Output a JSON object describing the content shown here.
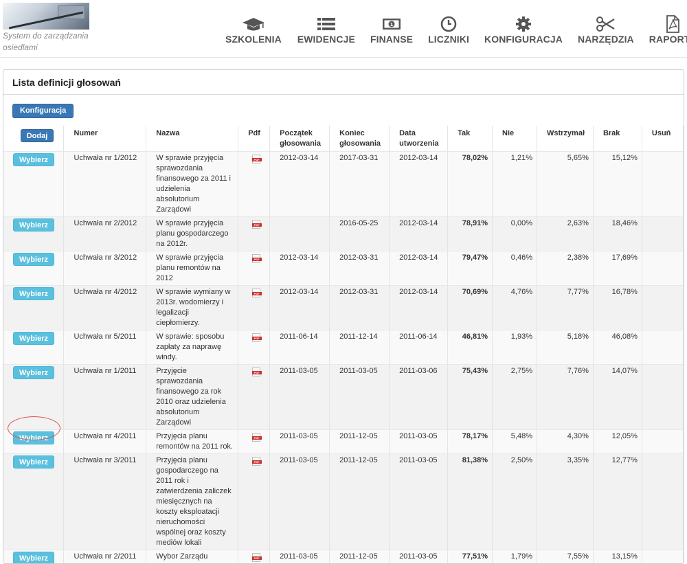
{
  "logo": {
    "tagline": "System do zarządzania osiedlami"
  },
  "nav": [
    {
      "label": "SZKOLENIA",
      "icon": "graduation-cap-icon"
    },
    {
      "label": "EWIDENCJE",
      "icon": "list-icon"
    },
    {
      "label": "FINANSE",
      "icon": "money-bill-icon"
    },
    {
      "label": "LICZNIKI",
      "icon": "clock-icon"
    },
    {
      "label": "KONFIGURACJA",
      "icon": "gear-icon"
    },
    {
      "label": "NARZĘDZIA",
      "icon": "scissors-icon"
    },
    {
      "label": "RAPORTY",
      "icon": "pdf-document-icon"
    }
  ],
  "panel": {
    "title": "Lista definicji głosowań",
    "config_button": "Konfiguracja"
  },
  "table": {
    "add_button": "Dodaj",
    "select_button": "Wybierz",
    "headers": {
      "numer": "Numer",
      "nazwa": "Nazwa",
      "pdf": "Pdf",
      "start": "Początek głosowania",
      "end": "Koniec głosowania",
      "created": "Data utworzenia",
      "tak": "Tak",
      "nie": "Nie",
      "wstrzymal": "Wstrzymał",
      "brak": "Brak",
      "usun": "Usuń"
    },
    "rows": [
      {
        "numer": "Uchwała nr 1/2012",
        "nazwa": "W sprawie przyjęcia sprawozdania finansowego za 2011 i udzielenia absolutorium Zarządowi",
        "start": "2012-03-14",
        "end": "2017-03-31",
        "created": "2012-03-14",
        "tak": "78,02%",
        "nie": "1,21%",
        "wstrzymal": "5,65%",
        "brak": "15,12%"
      },
      {
        "numer": "Uchwała nr 2/2012",
        "nazwa": "W sprawie przyjęcia planu gospodarczego na 2012r.",
        "start": "",
        "end": "2016-05-25",
        "created": "2012-03-14",
        "tak": "78,91%",
        "nie": "0,00%",
        "wstrzymal": "2,63%",
        "brak": "18,46%"
      },
      {
        "numer": "Uchwała nr 3/2012",
        "nazwa": "W sprawie przyjęcia planu remontów na 2012",
        "start": "2012-03-14",
        "end": "2012-03-31",
        "created": "2012-03-14",
        "tak": "79,47%",
        "nie": "0,46%",
        "wstrzymal": "2,38%",
        "brak": "17,69%"
      },
      {
        "numer": "Uchwała nr 4/2012",
        "nazwa": "W sprawie wymiany w 2013r. wodomierzy i legalizacji ciepłomierzy.",
        "start": "2012-03-14",
        "end": "2012-03-31",
        "created": "2012-03-14",
        "tak": "70,69%",
        "nie": "4,76%",
        "wstrzymal": "7,77%",
        "brak": "16,78%"
      },
      {
        "numer": "Uchwała nr 5/2011",
        "nazwa": "W sprawie: sposobu zapłaty za naprawę windy.",
        "start": "2011-06-14",
        "end": "2011-12-14",
        "created": "2011-06-14",
        "tak": "46,81%",
        "nie": "1,93%",
        "wstrzymal": "5,18%",
        "brak": "46,08%"
      },
      {
        "numer": "Uchwała nr 1/2011",
        "nazwa": "Przyjęcie sprawozdania finansowego za rok 2010 oraz udzielenia absolutorium Zarządowi",
        "start": "2011-03-05",
        "end": "2011-03-05",
        "created": "2011-03-06",
        "tak": "75,43%",
        "nie": "2,75%",
        "wstrzymal": "7,76%",
        "brak": "14,07%"
      },
      {
        "numer": "Uchwała nr 4/2011",
        "nazwa": "Przyjęcia planu remontów na 2011 rok.",
        "start": "2011-03-05",
        "end": "2011-12-05",
        "created": "2011-03-05",
        "tak": "78,17%",
        "nie": "5,48%",
        "wstrzymal": "4,30%",
        "brak": "12,05%"
      },
      {
        "numer": "Uchwała nr 3/2011",
        "nazwa": "Przyjęcia planu gospodarczego na 2011 rok i zatwierdzenia zaliczek miesięcznych na koszty eksploatacji nieruchomości wspólnej oraz koszty mediów lokali",
        "start": "2011-03-05",
        "end": "2011-12-05",
        "created": "2011-03-05",
        "tak": "81,38%",
        "nie": "2,50%",
        "wstrzymal": "3,35%",
        "brak": "12,77%"
      },
      {
        "numer": "Uchwała nr 2/2011",
        "nazwa": "Wybor Zarządu",
        "start": "2011-03-05",
        "end": "2011-12-05",
        "created": "2011-03-05",
        "tak": "77,51%",
        "nie": "1,79%",
        "wstrzymal": "7,55%",
        "brak": "13,15%"
      }
    ]
  }
}
